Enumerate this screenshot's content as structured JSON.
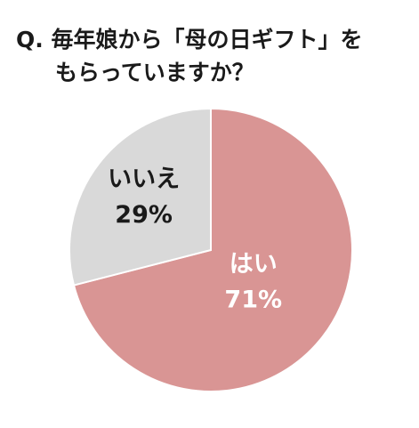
{
  "chart_data": {
    "type": "pie",
    "title": [
      "Q. 毎年娘から「母の日ギフト」を",
      "もらっていますか？"
    ],
    "categories": [
      "はい",
      "いいえ"
    ],
    "values": [
      71,
      29
    ],
    "value_labels": [
      "71%",
      "29%"
    ],
    "colors": [
      "#d99594",
      "#d9d9d9"
    ],
    "label_colors": [
      "#ffffff",
      "#1a1a1a"
    ]
  }
}
